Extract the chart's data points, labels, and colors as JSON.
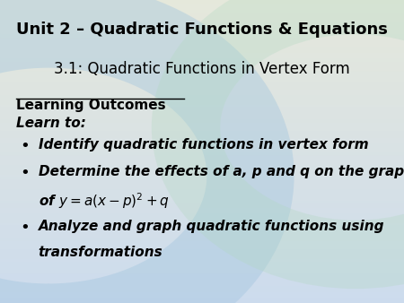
{
  "title": "Unit 2 – Quadratic Functions & Equations",
  "subtitle": "3.1: Quadratic Functions in Vertex Form",
  "section_header": "Learning Outcomes",
  "learn_to": "Learn to:",
  "bullet1": "Identify quadratic functions in vertex form",
  "bullet2_line1": "Determine the effects of a, p and q on the graph",
  "bullet3_line1": "Analyze and graph quadratic functions using",
  "bullet3_line2": "transformations",
  "text_color": "#000000",
  "title_fontsize": 13,
  "subtitle_fontsize": 12,
  "body_fontsize": 11
}
